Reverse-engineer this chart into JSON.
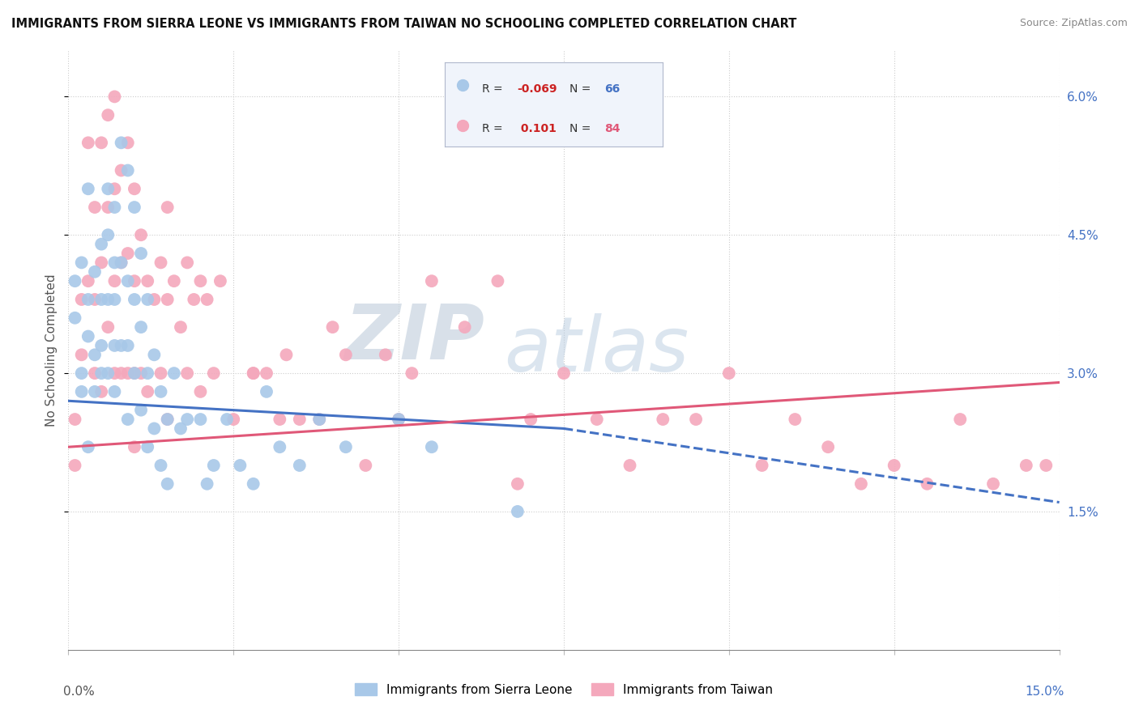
{
  "title": "IMMIGRANTS FROM SIERRA LEONE VS IMMIGRANTS FROM TAIWAN NO SCHOOLING COMPLETED CORRELATION CHART",
  "source": "Source: ZipAtlas.com",
  "ylabel": "No Schooling Completed",
  "xmin": 0.0,
  "xmax": 0.15,
  "ymin": 0.0,
  "ymax": 0.065,
  "yticks": [
    0.015,
    0.03,
    0.045,
    0.06
  ],
  "ytick_labels": [
    "1.5%",
    "3.0%",
    "4.5%",
    "6.0%"
  ],
  "xticks": [
    0.0,
    0.025,
    0.05,
    0.075,
    0.1,
    0.125,
    0.15
  ],
  "sierra_leone_color": "#a8c8e8",
  "taiwan_color": "#f4a8bc",
  "sierra_leone_line_color": "#4472c4",
  "taiwan_line_color": "#e05878",
  "watermark_color": "#ccd8e8",
  "sl_line_start_x": 0.0,
  "sl_line_start_y": 0.027,
  "sl_line_solid_end_x": 0.075,
  "sl_line_solid_end_y": 0.024,
  "sl_line_dash_end_x": 0.15,
  "sl_line_dash_end_y": 0.016,
  "tw_line_start_x": 0.0,
  "tw_line_start_y": 0.022,
  "tw_line_end_x": 0.15,
  "tw_line_end_y": 0.029,
  "sierra_leone_x": [
    0.001,
    0.001,
    0.002,
    0.002,
    0.002,
    0.003,
    0.003,
    0.003,
    0.003,
    0.004,
    0.004,
    0.004,
    0.005,
    0.005,
    0.005,
    0.005,
    0.006,
    0.006,
    0.006,
    0.006,
    0.007,
    0.007,
    0.007,
    0.007,
    0.007,
    0.008,
    0.008,
    0.008,
    0.009,
    0.009,
    0.009,
    0.009,
    0.01,
    0.01,
    0.01,
    0.011,
    0.011,
    0.011,
    0.012,
    0.012,
    0.012,
    0.013,
    0.013,
    0.014,
    0.014,
    0.015,
    0.015,
    0.016,
    0.017,
    0.018,
    0.02,
    0.021,
    0.022,
    0.024,
    0.026,
    0.028,
    0.03,
    0.032,
    0.035,
    0.038,
    0.042,
    0.05,
    0.055,
    0.06,
    0.062,
    0.068
  ],
  "sierra_leone_y": [
    0.036,
    0.04,
    0.03,
    0.028,
    0.042,
    0.038,
    0.034,
    0.022,
    0.05,
    0.041,
    0.032,
    0.028,
    0.044,
    0.038,
    0.033,
    0.03,
    0.05,
    0.045,
    0.038,
    0.03,
    0.048,
    0.042,
    0.038,
    0.033,
    0.028,
    0.055,
    0.042,
    0.033,
    0.052,
    0.04,
    0.033,
    0.025,
    0.048,
    0.038,
    0.03,
    0.043,
    0.035,
    0.026,
    0.038,
    0.03,
    0.022,
    0.032,
    0.024,
    0.028,
    0.02,
    0.025,
    0.018,
    0.03,
    0.024,
    0.025,
    0.025,
    0.018,
    0.02,
    0.025,
    0.02,
    0.018,
    0.028,
    0.022,
    0.02,
    0.025,
    0.022,
    0.025,
    0.022,
    0.06,
    0.063,
    0.015
  ],
  "taiwan_x": [
    0.001,
    0.001,
    0.002,
    0.002,
    0.003,
    0.003,
    0.004,
    0.004,
    0.004,
    0.005,
    0.005,
    0.005,
    0.006,
    0.006,
    0.006,
    0.007,
    0.007,
    0.007,
    0.007,
    0.008,
    0.008,
    0.008,
    0.009,
    0.009,
    0.009,
    0.01,
    0.01,
    0.01,
    0.01,
    0.011,
    0.011,
    0.012,
    0.012,
    0.013,
    0.014,
    0.014,
    0.015,
    0.015,
    0.015,
    0.016,
    0.017,
    0.018,
    0.018,
    0.019,
    0.02,
    0.02,
    0.021,
    0.022,
    0.023,
    0.025,
    0.028,
    0.03,
    0.033,
    0.035,
    0.04,
    0.042,
    0.048,
    0.052,
    0.055,
    0.06,
    0.065,
    0.07,
    0.075,
    0.08,
    0.085,
    0.09,
    0.095,
    0.1,
    0.105,
    0.11,
    0.115,
    0.12,
    0.125,
    0.13,
    0.135,
    0.14,
    0.145,
    0.148,
    0.05,
    0.038,
    0.028,
    0.032,
    0.045,
    0.068
  ],
  "taiwan_y": [
    0.025,
    0.02,
    0.032,
    0.038,
    0.04,
    0.055,
    0.048,
    0.038,
    0.03,
    0.055,
    0.042,
    0.028,
    0.058,
    0.048,
    0.035,
    0.06,
    0.05,
    0.04,
    0.03,
    0.052,
    0.042,
    0.03,
    0.055,
    0.043,
    0.03,
    0.05,
    0.04,
    0.03,
    0.022,
    0.045,
    0.03,
    0.04,
    0.028,
    0.038,
    0.042,
    0.03,
    0.048,
    0.038,
    0.025,
    0.04,
    0.035,
    0.042,
    0.03,
    0.038,
    0.04,
    0.028,
    0.038,
    0.03,
    0.04,
    0.025,
    0.03,
    0.03,
    0.032,
    0.025,
    0.035,
    0.032,
    0.032,
    0.03,
    0.04,
    0.035,
    0.04,
    0.025,
    0.03,
    0.025,
    0.02,
    0.025,
    0.025,
    0.03,
    0.02,
    0.025,
    0.022,
    0.018,
    0.02,
    0.018,
    0.025,
    0.018,
    0.02,
    0.02,
    0.025,
    0.025,
    0.03,
    0.025,
    0.02,
    0.018
  ]
}
